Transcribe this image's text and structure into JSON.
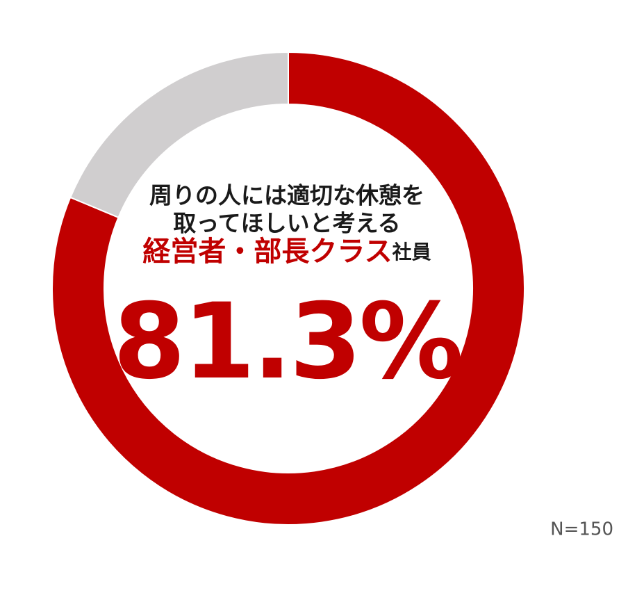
{
  "chart_data": {
    "type": "donut",
    "heading": [
      "周りの人には適切な休憩を",
      "取ってほしいと考える"
    ],
    "highlight": "経営者・部長クラス",
    "subject": "社員",
    "values": [
      81.3,
      18.7
    ],
    "value_labels": [
      "81.3%",
      null
    ],
    "colors": [
      "#c00000",
      "#d0cecf"
    ],
    "note": "N=150"
  }
}
